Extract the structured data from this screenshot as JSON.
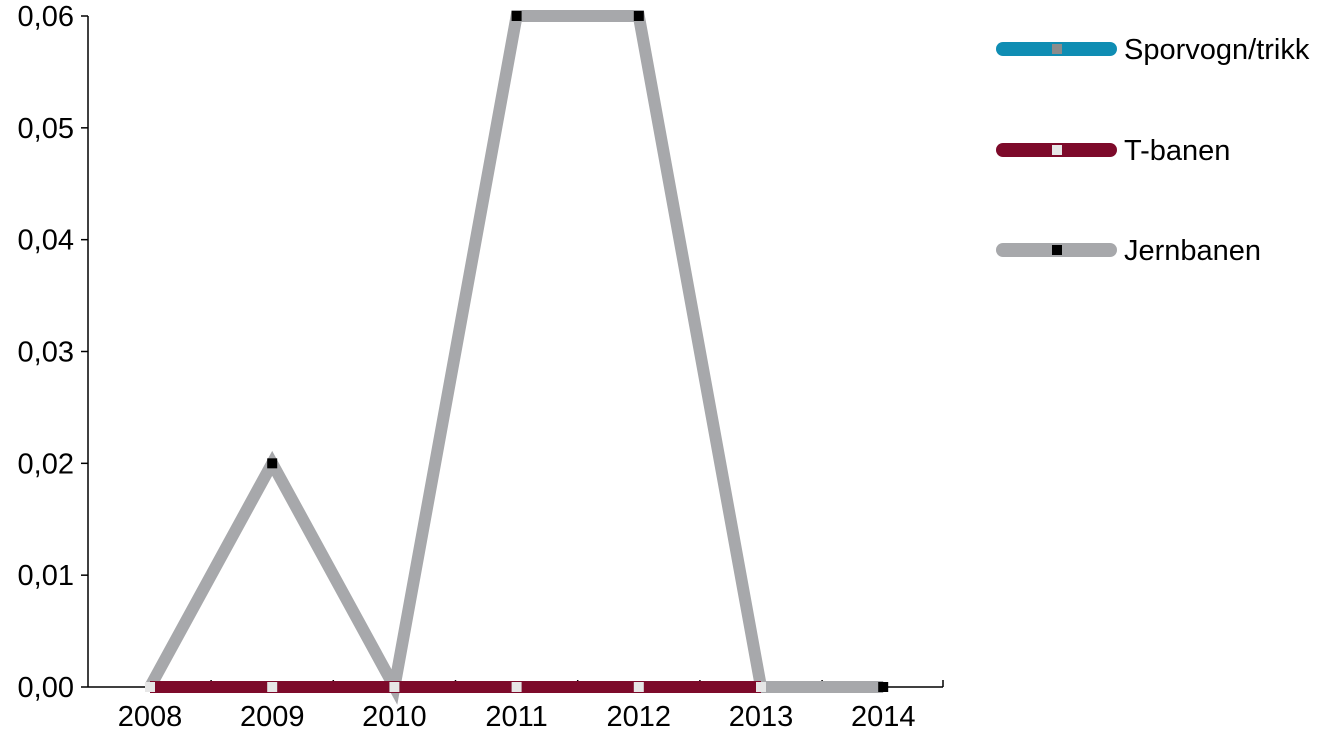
{
  "chart_data": {
    "type": "line",
    "categories": [
      "2008",
      "2009",
      "2010",
      "2011",
      "2012",
      "2013",
      "2014"
    ],
    "y_ticks": [
      "0,00",
      "0,01",
      "0,02",
      "0,03",
      "0,04",
      "0,05",
      "0,06"
    ],
    "ylim": [
      0,
      0.06
    ],
    "grid": false,
    "legend_position": "right",
    "title": "",
    "xlabel": "",
    "ylabel": "",
    "series": [
      {
        "name": "Sporvogn/trikk",
        "color": "#0f8db3",
        "marker_color": "#8c8c8c",
        "values": [
          null,
          null,
          null,
          null,
          null,
          null,
          null
        ]
      },
      {
        "name": "T-banen",
        "color": "#7d0a2a",
        "marker_color": "#e6e6e6",
        "values": [
          0,
          0,
          0,
          0,
          0,
          0,
          null
        ]
      },
      {
        "name": "Jernbanen",
        "color": "#a7a8ab",
        "marker_color": "#000000",
        "values": [
          0,
          0.02,
          0,
          0.06,
          0.06,
          0,
          0
        ]
      }
    ]
  }
}
